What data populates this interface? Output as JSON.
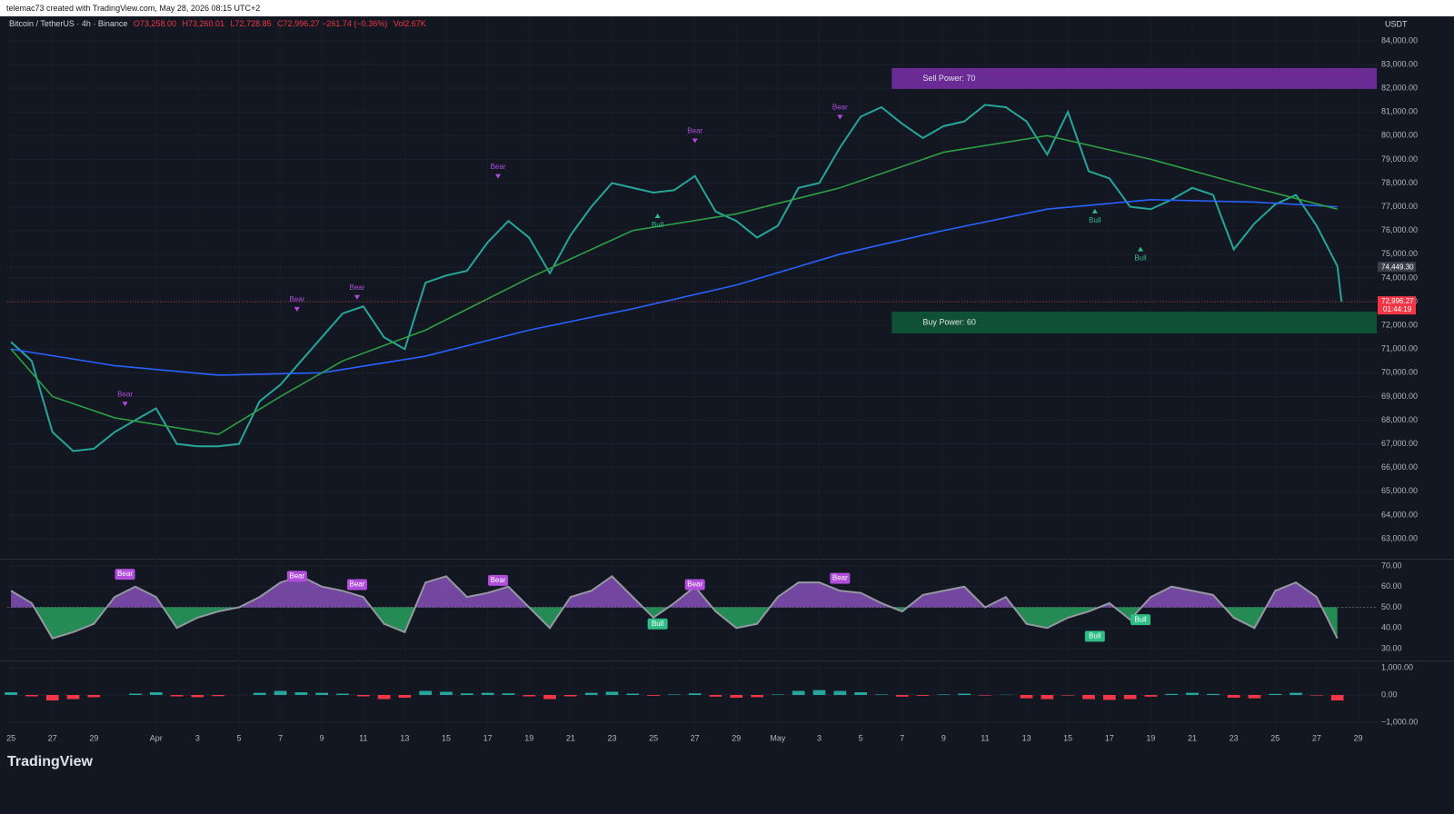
{
  "header": {
    "credit": "telemac73 created with TradingView.com, May 28, 2026 08:15 UTC+2",
    "symbol": "Bitcoin / TetherUS · 4h · Binance",
    "ohlc": [
      "O73,258.00",
      "H73,260.01",
      "L72,728.85",
      "C72,996.27 −261.74 (−0.36%)"
    ],
    "volume": "Vol2.67K",
    "currency": "USDT"
  },
  "footer": {
    "logo": "TradingView"
  },
  "chart_data": [
    {
      "type": "line",
      "xlim": [
        -0.18,
        65.9
      ],
      "ylim": [
        62160,
        85030
      ],
      "xticks": [
        {
          "value": 0,
          "label": "25"
        },
        {
          "value": 2,
          "label": "27"
        },
        {
          "value": 4,
          "label": "29"
        },
        {
          "value": 7,
          "label": "Apr"
        },
        {
          "value": 9,
          "label": "3"
        },
        {
          "value": 11,
          "label": "5"
        },
        {
          "value": 13,
          "label": "7"
        },
        {
          "value": 15,
          "label": "9"
        },
        {
          "value": 17,
          "label": "11"
        },
        {
          "value": 19,
          "label": "13"
        },
        {
          "value": 21,
          "label": "15"
        },
        {
          "value": 23,
          "label": "17"
        },
        {
          "value": 25,
          "label": "19"
        },
        {
          "value": 27,
          "label": "21"
        },
        {
          "value": 29,
          "label": "23"
        },
        {
          "value": 31,
          "label": "25"
        },
        {
          "value": 33,
          "label": "27"
        },
        {
          "value": 35,
          "label": "29"
        },
        {
          "value": 37,
          "label": "May"
        },
        {
          "value": 39,
          "label": "3"
        },
        {
          "value": 41,
          "label": "5"
        },
        {
          "value": 43,
          "label": "7"
        },
        {
          "value": 45,
          "label": "9"
        },
        {
          "value": 47,
          "label": "11"
        },
        {
          "value": 49,
          "label": "13"
        },
        {
          "value": 51,
          "label": "15"
        },
        {
          "value": 53,
          "label": "17"
        },
        {
          "value": 55,
          "label": "19"
        },
        {
          "value": 57,
          "label": "21"
        },
        {
          "value": 59,
          "label": "23"
        },
        {
          "value": 61,
          "label": "25"
        },
        {
          "value": 63,
          "label": "27"
        },
        {
          "value": 65,
          "label": "29"
        }
      ],
      "yticks": [
        {
          "value": 63000,
          "label": "63,000.00"
        },
        {
          "value": 64000,
          "label": "64,000.00"
        },
        {
          "value": 65000,
          "label": "65,000.00"
        },
        {
          "value": 66000,
          "label": "66,000.00"
        },
        {
          "value": 67000,
          "label": "67,000.00"
        },
        {
          "value": 68000,
          "label": "68,000.00"
        },
        {
          "value": 69000,
          "label": "69,000.00"
        },
        {
          "value": 70000,
          "label": "70,000.00"
        },
        {
          "value": 71000,
          "label": "71,000.00"
        },
        {
          "value": 72000,
          "label": "72,000.00"
        },
        {
          "value": 73000,
          "label": "73,000.00"
        },
        {
          "value": 74000,
          "label": "74,000.00"
        },
        {
          "value": 75000,
          "label": "75,000.00"
        },
        {
          "value": 76000,
          "label": "76,000.00"
        },
        {
          "value": 77000,
          "label": "77,000.00"
        },
        {
          "value": 78000,
          "label": "78,000.00"
        },
        {
          "value": 79000,
          "label": "79,000.00"
        },
        {
          "value": 80000,
          "label": "80,000.00"
        },
        {
          "value": 81000,
          "label": "81,000.00"
        },
        {
          "value": 82000,
          "label": "82,000.00"
        },
        {
          "value": 83000,
          "label": "83,000.00"
        },
        {
          "value": 84000,
          "label": "84,000.00"
        }
      ],
      "series": [
        {
          "color": "#26a69a",
          "x": [
            0,
            1,
            2,
            3,
            4,
            5,
            6,
            7,
            8,
            9,
            10,
            11,
            12,
            13,
            14,
            15,
            16,
            17,
            18,
            19,
            20,
            21,
            22,
            23,
            24,
            25,
            26,
            27,
            28,
            29,
            30,
            31,
            32,
            33,
            34,
            35,
            36,
            37,
            38,
            39,
            40,
            41,
            42,
            43,
            44,
            45,
            46,
            47,
            48,
            49,
            50,
            51,
            52,
            53,
            54,
            55,
            56,
            57,
            58,
            59,
            60,
            61,
            62,
            63,
            64,
            64.2
          ],
          "values": [
            71300,
            70500,
            67500,
            66700,
            66800,
            67500,
            68000,
            68500,
            67000,
            66900,
            66900,
            67000,
            68800,
            69500,
            70500,
            71500,
            72500,
            72800,
            71500,
            71000,
            73800,
            74100,
            74300,
            75500,
            76400,
            75700,
            74200,
            75800,
            77000,
            78000,
            77800,
            77600,
            77700,
            78300,
            76800,
            76400,
            75700,
            76200,
            77800,
            78000,
            79500,
            80800,
            81200,
            80500,
            79900,
            80400,
            80600,
            81300,
            81200,
            80600,
            79200,
            81000,
            78500,
            78200,
            77000,
            76900,
            77300,
            77800,
            77500,
            75200,
            76300,
            77100,
            77500,
            76200,
            74500,
            72996.27
          ]
        },
        {
          "color": "#2962ff",
          "x": [
            0,
            5,
            10,
            15,
            20,
            25,
            30,
            35,
            40,
            45,
            50,
            55,
            60,
            64
          ],
          "values": [
            71000,
            70300,
            69900,
            70000,
            70700,
            71800,
            72700,
            73700,
            75000,
            76000,
            76900,
            77300,
            77200,
            77000
          ]
        },
        {
          "color": "#2e9e45",
          "x": [
            0,
            2,
            5,
            10,
            13,
            16,
            20,
            25,
            30,
            35,
            40,
            45,
            50,
            55,
            60,
            64
          ],
          "values": [
            71000,
            69000,
            68100,
            67400,
            69000,
            70500,
            71800,
            74000,
            76000,
            76700,
            77800,
            79300,
            80000,
            79000,
            77800,
            76900
          ]
        }
      ],
      "zones": [
        {
          "label": "Sell Power: 70",
          "start": 42.5,
          "low": 81970,
          "high": 82850,
          "color": "#7b2fa8"
        },
        {
          "label": "Buy Power: 60",
          "start": 42.5,
          "low": 71660,
          "high": 72580,
          "color": "#0f5c3a"
        }
      ],
      "annotations": [
        {
          "text": "Bear",
          "x": 5.5,
          "y": 68700
        },
        {
          "text": "Bear",
          "x": 13.8,
          "y": 72700
        },
        {
          "text": "Bear",
          "x": 16.7,
          "y": 73200
        },
        {
          "text": "Bear",
          "x": 23.5,
          "y": 78300
        },
        {
          "text": "Bear",
          "x": 33.0,
          "y": 79800
        },
        {
          "text": "Bear",
          "x": 40.0,
          "y": 80800
        },
        {
          "text": "Bull",
          "x": 31.2,
          "y": 76600
        },
        {
          "text": "Bull",
          "x": 52.3,
          "y": 76800
        },
        {
          "text": "Bull",
          "x": 54.5,
          "y": 75200
        }
      ],
      "price_tags": [
        {
          "value": 74449.3,
          "label": "74,449.30",
          "color": "#3a3e4a"
        },
        {
          "value": 72996.27,
          "label": "72,996.27",
          "countdown": "01:44:19",
          "color": "#f23645"
        }
      ]
    },
    {
      "type": "line",
      "xlim": [
        -0.18,
        65.9
      ],
      "ylim": [
        24.3,
        73.5
      ],
      "yticks": [
        {
          "value": 30,
          "label": "30.00"
        },
        {
          "value": 40,
          "label": "40.00"
        },
        {
          "value": 50,
          "label": "50.00"
        },
        {
          "value": 60,
          "label": "60.00"
        },
        {
          "value": 70,
          "label": "70.00"
        }
      ],
      "baseline": 50,
      "series": [
        {
          "color": "#9598a1",
          "x": [
            0,
            1,
            2,
            3,
            4,
            5,
            6,
            7,
            8,
            9,
            10,
            11,
            12,
            13,
            14,
            15,
            16,
            17,
            18,
            19,
            20,
            21,
            22,
            23,
            24,
            25,
            26,
            27,
            28,
            29,
            30,
            31,
            32,
            33,
            34,
            35,
            36,
            37,
            38,
            39,
            40,
            41,
            42,
            43,
            44,
            45,
            46,
            47,
            48,
            49,
            50,
            51,
            52,
            53,
            54,
            55,
            56,
            57,
            58,
            59,
            60,
            61,
            62,
            63,
            64
          ],
          "values": [
            58,
            52,
            35,
            38,
            42,
            55,
            60,
            55,
            40,
            45,
            48,
            50,
            55,
            62,
            65,
            60,
            58,
            55,
            42,
            38,
            62,
            65,
            55,
            57,
            60,
            50,
            40,
            55,
            58,
            65,
            55,
            45,
            52,
            60,
            48,
            40,
            42,
            55,
            62,
            62,
            58,
            57,
            52,
            48,
            56,
            58,
            60,
            50,
            55,
            42,
            40,
            45,
            48,
            52,
            44,
            55,
            60,
            58,
            56,
            45,
            40,
            58,
            62,
            55,
            35
          ]
        }
      ],
      "annotations": [
        {
          "text": "Bear",
          "x": 5.5,
          "y": 66
        },
        {
          "text": "Bear",
          "x": 13.8,
          "y": 65
        },
        {
          "text": "Bear",
          "x": 16.7,
          "y": 61
        },
        {
          "text": "Bear",
          "x": 23.5,
          "y": 63
        },
        {
          "text": "Bear",
          "x": 33.0,
          "y": 61
        },
        {
          "text": "Bear",
          "x": 40.0,
          "y": 64
        },
        {
          "text": "Bull",
          "x": 31.2,
          "y": 42
        },
        {
          "text": "Bull",
          "x": 52.3,
          "y": 36
        },
        {
          "text": "Bull",
          "x": 54.5,
          "y": 44
        }
      ]
    },
    {
      "type": "bar",
      "xlim": [
        -0.18,
        65.9
      ],
      "ylim": [
        -1900,
        1267
      ],
      "yticks": [
        {
          "value": -1000,
          "label": "−1,000.00"
        },
        {
          "value": 0,
          "label": "0.00"
        },
        {
          "value": 1000,
          "label": "1,000.00"
        }
      ],
      "colors": [
        "#26a69a",
        "#f23645"
      ],
      "x": [
        0,
        1,
        2,
        3,
        4,
        5,
        6,
        7,
        8,
        9,
        10,
        11,
        12,
        13,
        14,
        15,
        16,
        17,
        18,
        19,
        20,
        21,
        22,
        23,
        24,
        25,
        26,
        27,
        28,
        29,
        30,
        31,
        32,
        33,
        34,
        35,
        36,
        37,
        38,
        39,
        40,
        41,
        42,
        43,
        44,
        45,
        46,
        47,
        48,
        49,
        50,
        51,
        52,
        53,
        54,
        55,
        56,
        57,
        58,
        59,
        60,
        61,
        62,
        63,
        64
      ],
      "values": [
        100,
        -50,
        -200,
        -150,
        -80,
        0,
        50,
        100,
        -50,
        -80,
        -40,
        0,
        80,
        150,
        100,
        80,
        50,
        -50,
        -150,
        -100,
        150,
        120,
        60,
        80,
        60,
        -50,
        -150,
        -50,
        80,
        120,
        50,
        -30,
        20,
        60,
        -60,
        -100,
        -80,
        20,
        150,
        180,
        150,
        100,
        20,
        -60,
        -30,
        20,
        50,
        -20,
        10,
        -120,
        -150,
        -20,
        -150,
        -180,
        -150,
        -60,
        40,
        80,
        40,
        -100,
        -120,
        40,
        80,
        -20,
        -200
      ]
    }
  ]
}
